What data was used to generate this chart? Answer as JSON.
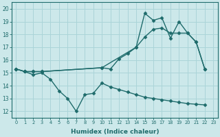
{
  "xlabel": "Humidex (Indice chaleur)",
  "bg_color": "#cce8ea",
  "grid_color": "#aad4d8",
  "line_color": "#1e6b6b",
  "ylim": [
    11.5,
    20.5
  ],
  "xlim": [
    -0.5,
    23.5
  ],
  "yticks": [
    12,
    13,
    14,
    15,
    16,
    17,
    18,
    19,
    20
  ],
  "xticks": [
    0,
    1,
    2,
    3,
    4,
    5,
    6,
    7,
    8,
    9,
    10,
    11,
    12,
    13,
    14,
    15,
    16,
    17,
    18,
    19,
    20,
    21,
    22,
    23
  ],
  "series1_x": [
    0,
    1,
    2,
    3,
    4,
    5,
    6,
    7,
    8,
    9,
    10,
    11,
    12,
    13,
    14,
    15,
    16,
    17,
    18,
    19,
    20,
    21,
    22
  ],
  "series1_y": [
    15.3,
    15.1,
    14.85,
    15.0,
    14.5,
    13.6,
    13.0,
    12.0,
    13.3,
    13.4,
    14.2,
    13.9,
    13.7,
    13.5,
    13.3,
    13.1,
    13.0,
    12.9,
    12.8,
    12.7,
    12.6,
    12.55,
    12.5
  ],
  "series2_x": [
    0,
    1,
    2,
    3,
    10,
    11,
    12,
    13,
    14,
    15,
    16,
    17,
    18,
    19,
    20,
    21,
    22
  ],
  "series2_y": [
    15.3,
    15.1,
    15.1,
    15.1,
    15.4,
    15.3,
    16.1,
    16.5,
    17.0,
    17.8,
    18.4,
    18.5,
    18.1,
    18.1,
    18.1,
    17.4,
    15.3
  ],
  "series3_x": [
    0,
    1,
    2,
    3,
    10,
    14,
    15,
    16,
    17,
    18,
    19,
    20,
    21,
    22
  ],
  "series3_y": [
    15.3,
    15.1,
    15.1,
    15.1,
    15.4,
    17.0,
    19.65,
    19.1,
    19.3,
    17.7,
    19.0,
    18.1,
    17.4,
    15.3
  ]
}
